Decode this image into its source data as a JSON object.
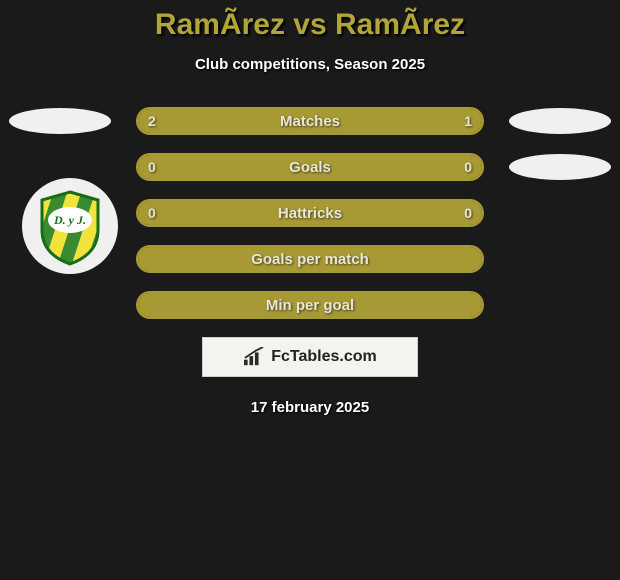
{
  "title": "RamÃ­rez vs RamÃ­rez",
  "subtitle": "Club competitions, Season 2025",
  "date": "17 february 2025",
  "brand": "FcTables.com",
  "colors": {
    "accent": "#a79a35",
    "accent_text": "#b0a536",
    "bg": "#1a1a1a",
    "oval": "#f0f0f0",
    "bar_text": "#e8e6d8"
  },
  "badge": {
    "text": "D. y J.",
    "stripe_colors": [
      "#3a8b2f",
      "#f2e23a"
    ]
  },
  "rows": [
    {
      "label": "Matches",
      "left_value": "2",
      "right_value": "1",
      "left_pct": 66,
      "right_pct": 34,
      "show_values": true,
      "oval_left": true,
      "oval_right": true
    },
    {
      "label": "Goals",
      "left_value": "0",
      "right_value": "0",
      "left_pct": 100,
      "right_pct": 0,
      "show_values": true,
      "oval_left": false,
      "oval_right": true
    },
    {
      "label": "Hattricks",
      "left_value": "0",
      "right_value": "0",
      "left_pct": 100,
      "right_pct": 0,
      "show_values": true,
      "oval_left": false,
      "oval_right": false
    },
    {
      "label": "Goals per match",
      "left_value": "",
      "right_value": "",
      "left_pct": 100,
      "right_pct": 0,
      "show_values": false,
      "oval_left": false,
      "oval_right": false
    },
    {
      "label": "Min per goal",
      "left_value": "",
      "right_value": "",
      "left_pct": 100,
      "right_pct": 0,
      "show_values": false,
      "oval_left": false,
      "oval_right": false
    }
  ]
}
